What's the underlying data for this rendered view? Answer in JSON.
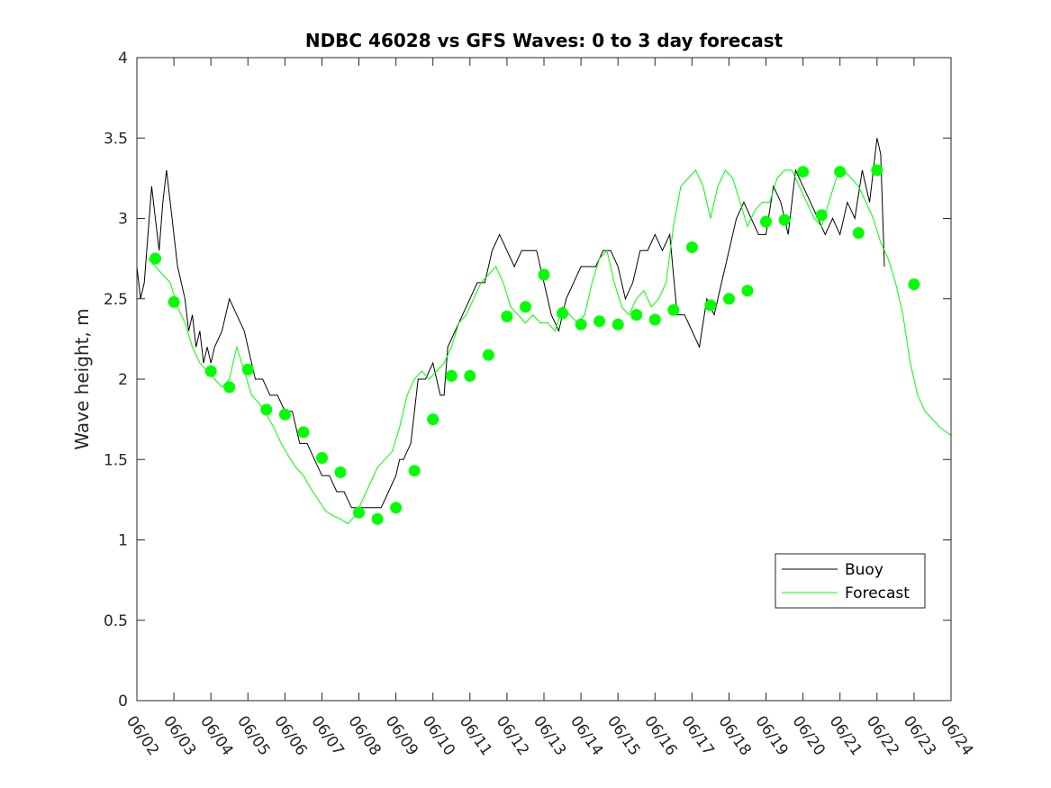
{
  "chart_data": {
    "type": "line",
    "title": "NDBC 46028 vs GFS Waves: 0 to 3 day forecast",
    "xlabel": "",
    "ylabel": "Wave height, m",
    "xlim": [
      "06/02",
      "06/24"
    ],
    "ylim": [
      0,
      4
    ],
    "x_ticks": [
      "06/02",
      "06/03",
      "06/04",
      "06/05",
      "06/06",
      "06/07",
      "06/08",
      "06/09",
      "06/10",
      "06/11",
      "06/12",
      "06/13",
      "06/14",
      "06/15",
      "06/16",
      "06/17",
      "06/18",
      "06/19",
      "06/20",
      "06/21",
      "06/22",
      "06/23",
      "06/24"
    ],
    "y_ticks": [
      "0",
      "0.5",
      "1",
      "1.5",
      "2",
      "2.5",
      "3",
      "3.5",
      "4"
    ],
    "legend": {
      "position": "lower-right",
      "entries": [
        "Buoy",
        "Forecast"
      ]
    },
    "colors": {
      "buoy": "#000000",
      "forecast": "#00ff00",
      "markers": "#00ff00"
    },
    "series": [
      {
        "name": "Buoy",
        "x_unit": "days since 06/02",
        "points": [
          [
            0.0,
            2.7
          ],
          [
            0.1,
            2.5
          ],
          [
            0.2,
            2.6
          ],
          [
            0.3,
            2.9
          ],
          [
            0.4,
            3.2
          ],
          [
            0.5,
            3.0
          ],
          [
            0.6,
            2.8
          ],
          [
            0.7,
            3.1
          ],
          [
            0.8,
            3.3
          ],
          [
            0.9,
            3.1
          ],
          [
            1.0,
            2.9
          ],
          [
            1.1,
            2.7
          ],
          [
            1.2,
            2.6
          ],
          [
            1.3,
            2.5
          ],
          [
            1.4,
            2.3
          ],
          [
            1.5,
            2.4
          ],
          [
            1.6,
            2.2
          ],
          [
            1.7,
            2.3
          ],
          [
            1.8,
            2.1
          ],
          [
            1.9,
            2.2
          ],
          [
            2.0,
            2.1
          ],
          [
            2.1,
            2.2
          ],
          [
            2.3,
            2.3
          ],
          [
            2.5,
            2.5
          ],
          [
            2.7,
            2.4
          ],
          [
            2.9,
            2.3
          ],
          [
            3.0,
            2.2
          ],
          [
            3.2,
            2.0
          ],
          [
            3.4,
            2.0
          ],
          [
            3.6,
            1.9
          ],
          [
            3.8,
            1.9
          ],
          [
            4.0,
            1.8
          ],
          [
            4.2,
            1.8
          ],
          [
            4.4,
            1.6
          ],
          [
            4.6,
            1.6
          ],
          [
            4.8,
            1.5
          ],
          [
            5.0,
            1.4
          ],
          [
            5.2,
            1.4
          ],
          [
            5.4,
            1.3
          ],
          [
            5.6,
            1.3
          ],
          [
            5.8,
            1.2
          ],
          [
            6.0,
            1.2
          ],
          [
            6.2,
            1.2
          ],
          [
            6.4,
            1.2
          ],
          [
            6.6,
            1.2
          ],
          [
            6.8,
            1.3
          ],
          [
            7.0,
            1.4
          ],
          [
            7.1,
            1.5
          ],
          [
            7.2,
            1.5
          ],
          [
            7.4,
            1.6
          ],
          [
            7.5,
            1.8
          ],
          [
            7.6,
            2.0
          ],
          [
            7.8,
            2.0
          ],
          [
            8.0,
            2.1
          ],
          [
            8.2,
            1.9
          ],
          [
            8.3,
            1.9
          ],
          [
            8.4,
            2.2
          ],
          [
            8.6,
            2.3
          ],
          [
            8.8,
            2.4
          ],
          [
            9.0,
            2.5
          ],
          [
            9.2,
            2.6
          ],
          [
            9.4,
            2.6
          ],
          [
            9.6,
            2.8
          ],
          [
            9.8,
            2.9
          ],
          [
            10.0,
            2.8
          ],
          [
            10.2,
            2.7
          ],
          [
            10.4,
            2.8
          ],
          [
            10.6,
            2.8
          ],
          [
            10.8,
            2.8
          ],
          [
            11.0,
            2.6
          ],
          [
            11.2,
            2.4
          ],
          [
            11.4,
            2.3
          ],
          [
            11.6,
            2.5
          ],
          [
            11.8,
            2.6
          ],
          [
            12.0,
            2.7
          ],
          [
            12.2,
            2.7
          ],
          [
            12.4,
            2.7
          ],
          [
            12.6,
            2.8
          ],
          [
            12.8,
            2.8
          ],
          [
            13.0,
            2.7
          ],
          [
            13.2,
            2.5
          ],
          [
            13.4,
            2.6
          ],
          [
            13.6,
            2.8
          ],
          [
            13.8,
            2.8
          ],
          [
            14.0,
            2.9
          ],
          [
            14.2,
            2.8
          ],
          [
            14.4,
            2.9
          ],
          [
            14.6,
            2.4
          ],
          [
            14.8,
            2.4
          ],
          [
            15.0,
            2.3
          ],
          [
            15.2,
            2.2
          ],
          [
            15.4,
            2.5
          ],
          [
            15.6,
            2.4
          ],
          [
            15.8,
            2.6
          ],
          [
            16.0,
            2.8
          ],
          [
            16.2,
            3.0
          ],
          [
            16.4,
            3.1
          ],
          [
            16.6,
            3.0
          ],
          [
            16.8,
            2.9
          ],
          [
            17.0,
            2.9
          ],
          [
            17.2,
            3.2
          ],
          [
            17.4,
            3.1
          ],
          [
            17.6,
            2.9
          ],
          [
            17.8,
            3.3
          ],
          [
            18.0,
            3.2
          ],
          [
            18.2,
            3.1
          ],
          [
            18.4,
            3.0
          ],
          [
            18.6,
            2.9
          ],
          [
            18.8,
            3.0
          ],
          [
            19.0,
            2.9
          ],
          [
            19.2,
            3.1
          ],
          [
            19.4,
            3.0
          ],
          [
            19.6,
            3.3
          ],
          [
            19.8,
            3.1
          ],
          [
            20.0,
            3.5
          ],
          [
            20.1,
            3.4
          ],
          [
            20.2,
            2.7
          ]
        ]
      },
      {
        "name": "Forecast",
        "x_unit": "days since 06/02",
        "points": [
          [
            0.3,
            2.75
          ],
          [
            0.5,
            2.7
          ],
          [
            0.7,
            2.65
          ],
          [
            0.9,
            2.6
          ],
          [
            1.1,
            2.45
          ],
          [
            1.3,
            2.35
          ],
          [
            1.5,
            2.2
          ],
          [
            1.7,
            2.1
          ],
          [
            1.9,
            2.05
          ],
          [
            2.1,
            2.0
          ],
          [
            2.3,
            1.95
          ],
          [
            2.5,
            2.0
          ],
          [
            2.7,
            2.2
          ],
          [
            2.9,
            2.05
          ],
          [
            3.1,
            1.9
          ],
          [
            3.3,
            1.85
          ],
          [
            3.5,
            1.78
          ],
          [
            3.7,
            1.7
          ],
          [
            3.9,
            1.6
          ],
          [
            4.1,
            1.52
          ],
          [
            4.3,
            1.45
          ],
          [
            4.5,
            1.4
          ],
          [
            4.7,
            1.32
          ],
          [
            4.9,
            1.25
          ],
          [
            5.1,
            1.18
          ],
          [
            5.3,
            1.15
          ],
          [
            5.5,
            1.13
          ],
          [
            5.7,
            1.1
          ],
          [
            5.9,
            1.15
          ],
          [
            6.1,
            1.25
          ],
          [
            6.3,
            1.35
          ],
          [
            6.5,
            1.45
          ],
          [
            6.7,
            1.5
          ],
          [
            6.9,
            1.55
          ],
          [
            7.1,
            1.7
          ],
          [
            7.3,
            1.9
          ],
          [
            7.5,
            2.0
          ],
          [
            7.7,
            2.05
          ],
          [
            7.9,
            2.0
          ],
          [
            8.1,
            2.05
          ],
          [
            8.3,
            2.1
          ],
          [
            8.5,
            2.2
          ],
          [
            8.7,
            2.35
          ],
          [
            8.9,
            2.4
          ],
          [
            9.1,
            2.5
          ],
          [
            9.3,
            2.6
          ],
          [
            9.5,
            2.65
          ],
          [
            9.7,
            2.7
          ],
          [
            9.9,
            2.6
          ],
          [
            10.1,
            2.45
          ],
          [
            10.3,
            2.4
          ],
          [
            10.5,
            2.35
          ],
          [
            10.7,
            2.4
          ],
          [
            10.9,
            2.35
          ],
          [
            11.1,
            2.35
          ],
          [
            11.3,
            2.3
          ],
          [
            11.5,
            2.45
          ],
          [
            11.7,
            2.4
          ],
          [
            11.9,
            2.35
          ],
          [
            12.1,
            2.4
          ],
          [
            12.3,
            2.6
          ],
          [
            12.5,
            2.75
          ],
          [
            12.7,
            2.8
          ],
          [
            12.9,
            2.6
          ],
          [
            13.1,
            2.45
          ],
          [
            13.3,
            2.4
          ],
          [
            13.5,
            2.5
          ],
          [
            13.7,
            2.55
          ],
          [
            13.9,
            2.45
          ],
          [
            14.1,
            2.5
          ],
          [
            14.3,
            2.6
          ],
          [
            14.5,
            2.95
          ],
          [
            14.7,
            3.2
          ],
          [
            14.9,
            3.25
          ],
          [
            15.1,
            3.3
          ],
          [
            15.3,
            3.2
          ],
          [
            15.5,
            3.0
          ],
          [
            15.7,
            3.2
          ],
          [
            15.9,
            3.3
          ],
          [
            16.1,
            3.25
          ],
          [
            16.3,
            3.1
          ],
          [
            16.5,
            2.95
          ],
          [
            16.7,
            3.05
          ],
          [
            16.9,
            3.1
          ],
          [
            17.1,
            3.1
          ],
          [
            17.3,
            3.25
          ],
          [
            17.5,
            3.3
          ],
          [
            17.7,
            3.3
          ],
          [
            17.9,
            3.2
          ],
          [
            18.1,
            3.1
          ],
          [
            18.3,
            3.0
          ],
          [
            18.5,
            2.95
          ],
          [
            18.7,
            3.1
          ],
          [
            18.9,
            3.25
          ],
          [
            19.1,
            3.3
          ],
          [
            19.3,
            3.25
          ],
          [
            19.5,
            3.2
          ],
          [
            19.7,
            3.1
          ],
          [
            19.9,
            3.0
          ],
          [
            20.1,
            2.85
          ],
          [
            20.3,
            2.75
          ],
          [
            20.5,
            2.6
          ],
          [
            20.7,
            2.4
          ],
          [
            20.9,
            2.1
          ],
          [
            21.1,
            1.9
          ],
          [
            21.3,
            1.8
          ],
          [
            21.5,
            1.75
          ],
          [
            21.7,
            1.7
          ],
          [
            22.0,
            1.65
          ]
        ]
      },
      {
        "name": "",
        "x_unit": "days since 06/02",
        "style": "markers",
        "points": [
          [
            0.5,
            2.75
          ],
          [
            1.0,
            2.48
          ],
          [
            2.0,
            2.05
          ],
          [
            2.5,
            1.95
          ],
          [
            3.0,
            2.06
          ],
          [
            3.5,
            1.81
          ],
          [
            4.0,
            1.78
          ],
          [
            4.5,
            1.67
          ],
          [
            5.0,
            1.51
          ],
          [
            5.5,
            1.42
          ],
          [
            6.0,
            1.17
          ],
          [
            6.5,
            1.13
          ],
          [
            7.0,
            1.2
          ],
          [
            7.5,
            1.43
          ],
          [
            8.0,
            1.75
          ],
          [
            8.5,
            2.02
          ],
          [
            9.0,
            2.02
          ],
          [
            9.5,
            2.15
          ],
          [
            10.0,
            2.39
          ],
          [
            10.5,
            2.45
          ],
          [
            11.0,
            2.65
          ],
          [
            11.5,
            2.41
          ],
          [
            12.0,
            2.34
          ],
          [
            12.5,
            2.36
          ],
          [
            13.0,
            2.34
          ],
          [
            13.5,
            2.4
          ],
          [
            14.0,
            2.37
          ],
          [
            14.5,
            2.43
          ],
          [
            15.0,
            2.82
          ],
          [
            15.5,
            2.46
          ],
          [
            16.0,
            2.5
          ],
          [
            16.5,
            2.55
          ],
          [
            17.0,
            2.98
          ],
          [
            17.5,
            2.99
          ],
          [
            18.0,
            3.29
          ],
          [
            18.5,
            3.02
          ],
          [
            19.0,
            3.29
          ],
          [
            19.5,
            2.91
          ],
          [
            20.0,
            3.3
          ],
          [
            21.0,
            2.59
          ]
        ]
      }
    ]
  }
}
